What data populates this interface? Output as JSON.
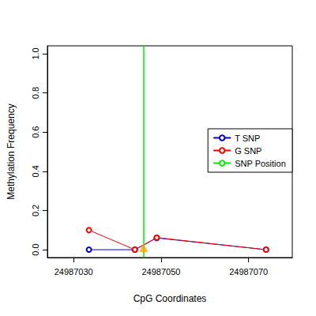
{
  "chart_data": {
    "type": "line",
    "x_label": "CpG Coordinates",
    "y_label": "Methylation Frequency",
    "x": [
      24987033.5,
      24987044,
      24987049,
      24987074
    ],
    "series": [
      {
        "name": "T SNP",
        "color": "#0000cd",
        "marker": "open circle",
        "values": [
          0,
          0,
          0.06,
          0
        ]
      },
      {
        "name": "G SNP",
        "color": "#ff0000",
        "marker": "open circle",
        "values": [
          0.1,
          0,
          0.062,
          0
        ]
      },
      {
        "name": "SNP Position",
        "color": "#00ee00",
        "type": "vline",
        "x": 24987046
      }
    ],
    "snp_marker": {
      "x": 24987046,
      "y": 0.01,
      "color": "#ffa500",
      "marker": "triangle"
    },
    "xlim": [
      24987024,
      24987080
    ],
    "xticks": [
      24987030,
      24987050,
      24987070
    ],
    "ylim": [
      -0.04,
      1.04
    ],
    "yticks": [
      {
        "value": 0,
        "label": "0.0"
      },
      0.2,
      0.4,
      0.6,
      0.8,
      {
        "value": 1,
        "label": "1.0"
      }
    ],
    "grid": false,
    "legend": "right"
  }
}
